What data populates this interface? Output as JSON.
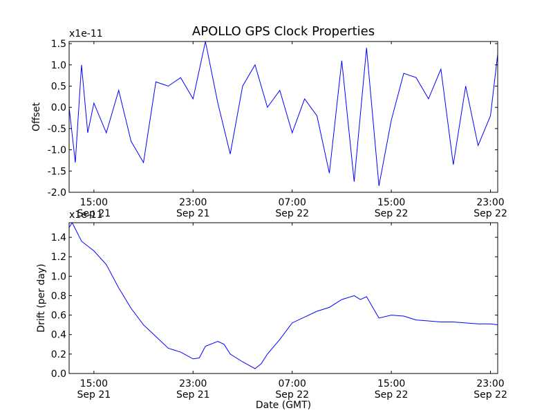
{
  "figure": {
    "title": "APOLLO GPS Clock Properties",
    "xlabel": "Date (GMT)",
    "colors": {
      "series": "#0000ff",
      "axes": "#000000",
      "background": "#ffffff"
    }
  },
  "chart_data": [
    {
      "type": "line",
      "ylabel": "Offset",
      "multiplier": "x1e-11",
      "xlim": [
        "2012-09-21 13:00",
        "2012-09-22 23:35"
      ],
      "ylim": [
        -2.0,
        1.55
      ],
      "yticks": [
        "-2.0",
        "-1.5",
        "-1.0",
        "-0.5",
        "0.0",
        "0.5",
        "1.0",
        "1.5"
      ],
      "yticks_values": [
        -2.0,
        -1.5,
        -1.0,
        -0.5,
        0.0,
        0.5,
        1.0,
        1.5
      ],
      "xticks": [
        {
          "time": "15:00",
          "date": "Sep 21",
          "value": "2012-09-21 15:00"
        },
        {
          "time": "23:00",
          "date": "Sep 21",
          "value": "2012-09-21 23:00"
        },
        {
          "time": "07:00",
          "date": "Sep 22",
          "value": "2012-09-22 07:00"
        },
        {
          "time": "15:00",
          "date": "Sep 22",
          "value": "2012-09-22 15:00"
        },
        {
          "time": "23:00",
          "date": "Sep 22",
          "value": "2012-09-22 23:00"
        }
      ],
      "grid": false,
      "series": [
        {
          "x": [
            "2012-09-21 13:00",
            "2012-09-21 13:30",
            "2012-09-21 14:00",
            "2012-09-21 14:30",
            "2012-09-21 15:00",
            "2012-09-21 16:00",
            "2012-09-21 17:00",
            "2012-09-21 18:00",
            "2012-09-21 19:00",
            "2012-09-21 20:00",
            "2012-09-21 21:00",
            "2012-09-21 22:00",
            "2012-09-21 23:00",
            "2012-09-22 00:00",
            "2012-09-22 01:00",
            "2012-09-22 02:00",
            "2012-09-22 03:00",
            "2012-09-22 04:00",
            "2012-09-22 05:00",
            "2012-09-22 06:00",
            "2012-09-22 07:00",
            "2012-09-22 08:00",
            "2012-09-22 09:00",
            "2012-09-22 10:00",
            "2012-09-22 11:00",
            "2012-09-22 12:00",
            "2012-09-22 13:00",
            "2012-09-22 14:00",
            "2012-09-22 15:00",
            "2012-09-22 16:00",
            "2012-09-22 17:00",
            "2012-09-22 18:00",
            "2012-09-22 19:00",
            "2012-09-22 20:00",
            "2012-09-22 21:00",
            "2012-09-22 22:00",
            "2012-09-22 23:00",
            "2012-09-22 23:35"
          ],
          "values": [
            0.0,
            -1.3,
            1.0,
            -0.6,
            0.1,
            -0.6,
            0.4,
            -0.8,
            -1.3,
            0.6,
            0.5,
            0.7,
            0.2,
            1.55,
            0.1,
            -1.1,
            0.5,
            1.0,
            0.0,
            0.4,
            -0.6,
            0.2,
            -0.2,
            -1.55,
            1.1,
            -1.75,
            1.4,
            -1.85,
            -0.3,
            0.8,
            0.7,
            0.2,
            0.9,
            -1.35,
            0.5,
            -0.9,
            -0.2,
            1.25
          ]
        }
      ]
    },
    {
      "type": "line",
      "ylabel": "Drift (per day)",
      "multiplier": "x1e-11",
      "xlim": [
        "2012-09-21 13:00",
        "2012-09-22 23:35"
      ],
      "ylim": [
        0.0,
        1.55
      ],
      "yticks": [
        "0.0",
        "0.2",
        "0.4",
        "0.6",
        "0.8",
        "1.0",
        "1.2",
        "1.4"
      ],
      "yticks_values": [
        0.0,
        0.2,
        0.4,
        0.6,
        0.8,
        1.0,
        1.2,
        1.4
      ],
      "xticks": [
        {
          "time": "15:00",
          "date": "Sep 21",
          "value": "2012-09-21 15:00"
        },
        {
          "time": "23:00",
          "date": "Sep 21",
          "value": "2012-09-21 23:00"
        },
        {
          "time": "07:00",
          "date": "Sep 22",
          "value": "2012-09-22 07:00"
        },
        {
          "time": "15:00",
          "date": "Sep 22",
          "value": "2012-09-22 15:00"
        },
        {
          "time": "23:00",
          "date": "Sep 22",
          "value": "2012-09-22 23:00"
        }
      ],
      "grid": false,
      "series": [
        {
          "x": [
            "2012-09-21 13:00",
            "2012-09-21 13:15",
            "2012-09-21 14:00",
            "2012-09-21 15:00",
            "2012-09-21 16:00",
            "2012-09-21 17:00",
            "2012-09-21 18:00",
            "2012-09-21 19:00",
            "2012-09-21 20:00",
            "2012-09-21 21:00",
            "2012-09-21 22:00",
            "2012-09-21 23:00",
            "2012-09-21 23:30",
            "2012-09-22 00:00",
            "2012-09-22 01:00",
            "2012-09-22 01:30",
            "2012-09-22 02:00",
            "2012-09-22 03:00",
            "2012-09-22 04:00",
            "2012-09-22 04:30",
            "2012-09-22 05:00",
            "2012-09-22 06:00",
            "2012-09-22 07:00",
            "2012-09-22 08:00",
            "2012-09-22 09:00",
            "2012-09-22 10:00",
            "2012-09-22 11:00",
            "2012-09-22 12:00",
            "2012-09-22 12:30",
            "2012-09-22 13:00",
            "2012-09-22 14:00",
            "2012-09-22 15:00",
            "2012-09-22 16:00",
            "2012-09-22 17:00",
            "2012-09-22 18:00",
            "2012-09-22 19:00",
            "2012-09-22 20:00",
            "2012-09-22 21:00",
            "2012-09-22 22:00",
            "2012-09-22 23:00",
            "2012-09-22 23:35"
          ],
          "values": [
            1.5,
            1.55,
            1.36,
            1.26,
            1.12,
            0.88,
            0.67,
            0.5,
            0.38,
            0.26,
            0.22,
            0.15,
            0.16,
            0.28,
            0.33,
            0.3,
            0.2,
            0.12,
            0.05,
            0.1,
            0.2,
            0.35,
            0.52,
            0.58,
            0.64,
            0.68,
            0.76,
            0.8,
            0.76,
            0.79,
            0.57,
            0.6,
            0.59,
            0.55,
            0.54,
            0.53,
            0.53,
            0.52,
            0.51,
            0.51,
            0.5
          ]
        }
      ]
    }
  ]
}
